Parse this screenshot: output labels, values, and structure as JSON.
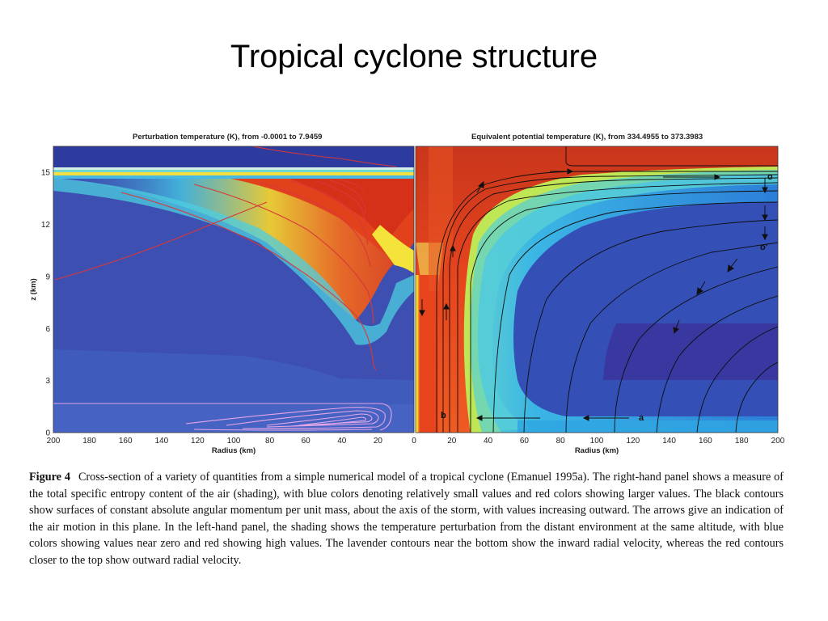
{
  "slide": {
    "title": "Tropical cyclone structure"
  },
  "left_panel": {
    "title": "Perturbation temperature (K), from -0.0001 to 7.9459",
    "xlabel": "Radius (km)",
    "ylabel": "z (km)",
    "x_ticks": [
      "200",
      "180",
      "160",
      "140",
      "120",
      "100",
      "80",
      "60",
      "40",
      "20",
      "0"
    ],
    "y_ticks": [
      "0",
      "3",
      "6",
      "9",
      "12",
      "15"
    ],
    "x_range": [
      200,
      0
    ],
    "y_range": [
      0,
      16.5
    ]
  },
  "right_panel": {
    "title": "Equivalent potential temperature (K), from 334.4955 to 373.3983",
    "xlabel": "Radius (km)",
    "x_ticks": [
      "20",
      "40",
      "60",
      "80",
      "100",
      "120",
      "140",
      "160",
      "180",
      "200"
    ],
    "x_range": [
      0,
      200
    ],
    "y_range": [
      0,
      16.5
    ],
    "point_labels": [
      "o",
      "o'",
      "b",
      "a"
    ]
  },
  "colors": {
    "low": "#3a50b4",
    "mid": "#3ecbe0",
    "high": "#e8441e",
    "peak": "#f3f040",
    "inflow_contour": "#e6a6e6",
    "outflow_contour": "#d8383a",
    "momentum_contour": "#0d0d0d"
  },
  "caption": {
    "label": "Figure 4",
    "text": "Cross-section of a variety of quantities from a simple numerical model of a tropical cyclone (Emanuel 1995a). The right-hand panel shows a measure of the total specific entropy content of the air (shading), with blue colors denoting relatively small values and red colors showing larger values. The black contours show surfaces of constant absolute angular momentum per unit mass, about the axis of the storm, with values increasing outward. The arrows give an indication of the air motion in this plane. In the left-hand panel, the shading shows the temperature perturbation from the distant environment at the same altitude, with blue colors showing values near zero and red showing high values. The lavender contours near the bottom show the inward radial velocity, whereas the red contours closer to the top show outward radial velocity."
  }
}
